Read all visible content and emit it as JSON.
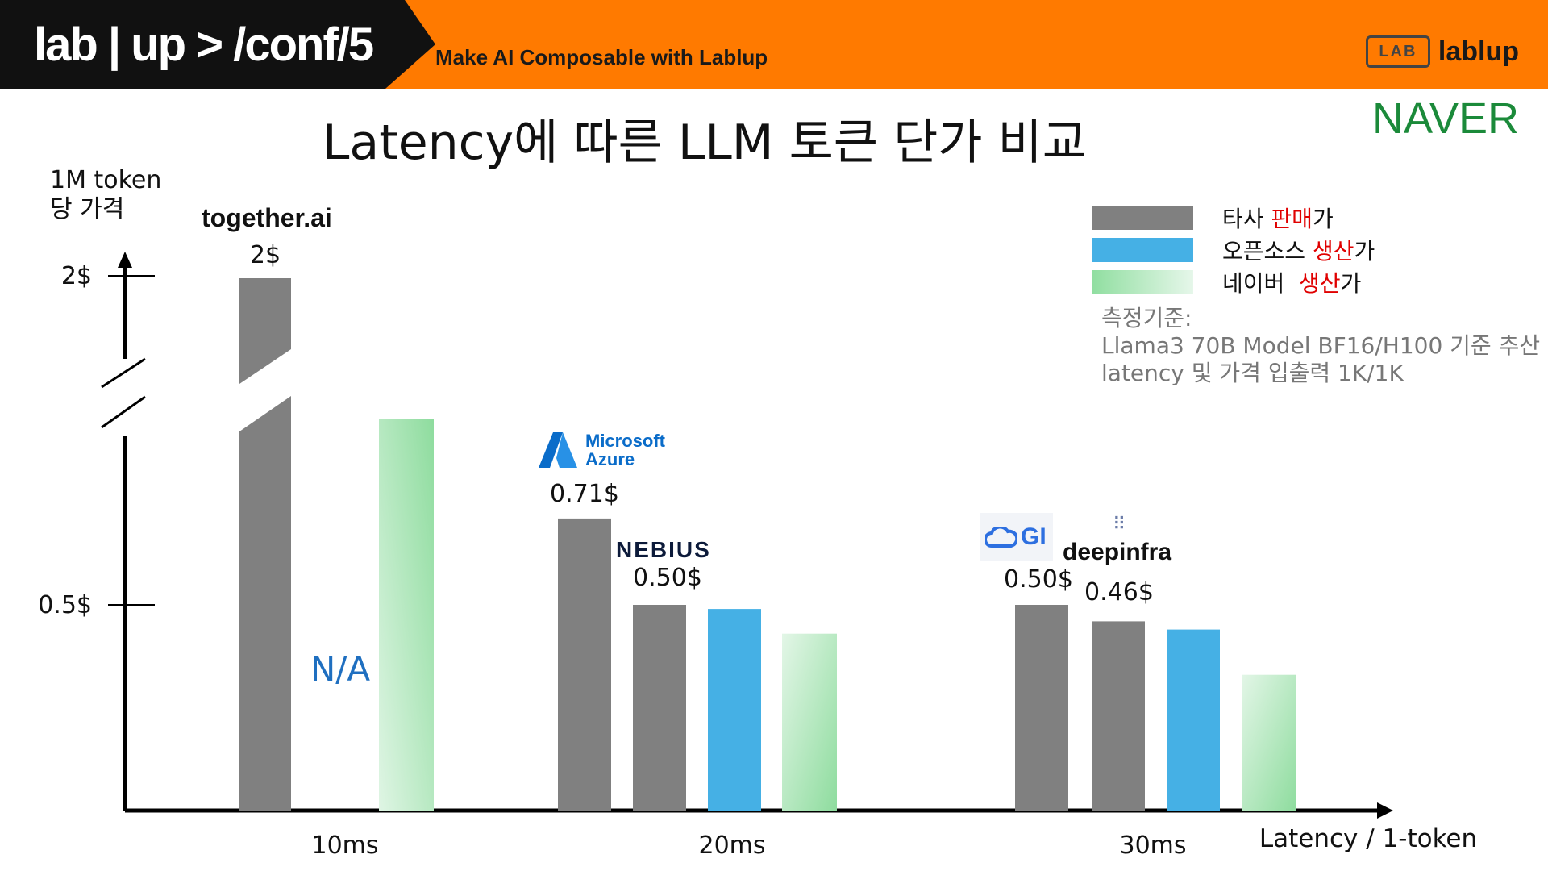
{
  "header": {
    "brand": "lab | up > /conf/5",
    "tagline": "Make AI Composable with Lablup",
    "logo_text": "lablup",
    "logo_mark": "LAB"
  },
  "slide": {
    "title": "Latency에 따른 LLM 토큰 단가 비교",
    "corner_brand": "NAVER"
  },
  "axes": {
    "ylabel_line1": "1M token",
    "ylabel_line2": "당 가격",
    "xlabel": "Latency / 1-token"
  },
  "legend": {
    "items": [
      {
        "prefix": "타사 ",
        "highlight": "판매",
        "suffix": "가",
        "color": "#808080"
      },
      {
        "prefix": "오픈소스 ",
        "highlight": "생산",
        "suffix": "가",
        "color": "#45b0e5"
      },
      {
        "prefix": "네이버  ",
        "highlight": "생산",
        "suffix": "가",
        "color": "#a6e3b3"
      }
    ]
  },
  "note": {
    "line1": "측정기준:",
    "line2": "Llama3 70B Model BF16/H100 기준 추산",
    "line3": "latency 및 가격 입출력 1K/1K"
  },
  "providers": {
    "together": "together.ai",
    "microsoft_line1": "Microsoft",
    "microsoft_line2": "Azure",
    "nebius": "NEBIUS",
    "gmi": "GI",
    "deepinfra": "deepinfra"
  },
  "na_label": "N/A",
  "chart_data": {
    "type": "bar",
    "title": "Latency에 따른 LLM 토큰 단가 비교",
    "xlabel": "Latency / 1-token",
    "ylabel": "1M token 당 가격",
    "y_ticks": [
      "2$",
      "0.5$"
    ],
    "y_tick_values": [
      2,
      0.5
    ],
    "axis_break": true,
    "groups": [
      {
        "latency": "10ms",
        "bars": [
          {
            "series": "타사 판매가",
            "provider": "together.ai",
            "value": 2,
            "label": "2$",
            "broken": true
          },
          {
            "series": "네이버 생산가",
            "value": 0.88,
            "gradient": true
          }
        ],
        "na": "N/A"
      },
      {
        "latency": "20ms",
        "bars": [
          {
            "series": "타사 판매가",
            "provider": "Microsoft Azure",
            "value": 0.71,
            "label": "0.71$"
          },
          {
            "series": "타사 판매가",
            "provider": "NEBIUS",
            "value": 0.5,
            "label": "0.50$"
          },
          {
            "series": "오픈소스 생산가",
            "value": 0.49
          },
          {
            "series": "네이버 생산가",
            "value": 0.43,
            "gradient": true
          }
        ]
      },
      {
        "latency": "30ms",
        "bars": [
          {
            "series": "타사 판매가",
            "provider": "GMI",
            "value": 0.5,
            "label": "0.50$"
          },
          {
            "series": "타사 판매가",
            "provider": "deepinfra",
            "value": 0.46,
            "label": "0.46$"
          },
          {
            "series": "오픈소스 생산가",
            "value": 0.44
          },
          {
            "series": "네이버 생산가",
            "value": 0.33,
            "gradient": true
          }
        ]
      }
    ],
    "legend_position": "top-right",
    "grid": false
  }
}
